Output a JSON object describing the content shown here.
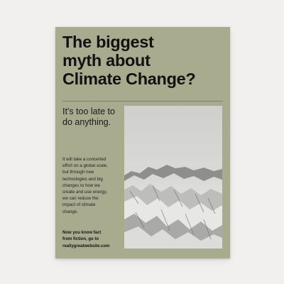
{
  "poster": {
    "headline_lines": [
      "The biggest",
      "myth about",
      "Climate Change?"
    ],
    "subhead_lines": [
      "It's too late to",
      "do anything."
    ],
    "body_lines": [
      "It will take a concerted",
      "effort on a global scale,",
      "but through new",
      "technologies and big",
      "changes to how we",
      "create and use energy,",
      "we can reduce the",
      "impact of climate",
      "change."
    ],
    "cta_lines": [
      "Now you know fact",
      "from fiction, go to",
      "reallygreatwebsite.com"
    ],
    "image_label": "snowy-mountain-photo"
  },
  "colors": {
    "background": "#f1f0ee",
    "poster": "#a9ab8e",
    "text": "#121212"
  }
}
